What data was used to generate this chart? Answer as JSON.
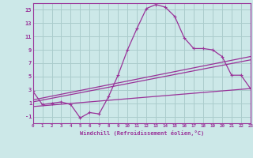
{
  "xlabel": "Windchill (Refroidissement éolien,°C)",
  "background_color": "#cce8e8",
  "grid_color": "#aacccc",
  "line_color": "#993399",
  "xlim": [
    0,
    23
  ],
  "ylim": [
    -2,
    16
  ],
  "xticks": [
    0,
    1,
    2,
    3,
    4,
    5,
    6,
    7,
    8,
    9,
    10,
    11,
    12,
    13,
    14,
    15,
    16,
    17,
    18,
    19,
    20,
    21,
    22,
    23
  ],
  "yticks": [
    -1,
    1,
    3,
    5,
    7,
    9,
    11,
    13,
    15
  ],
  "curve1_x": [
    0,
    1,
    2,
    3,
    4,
    5,
    6,
    7,
    8,
    9,
    10,
    11,
    12,
    13,
    14,
    15,
    16,
    17,
    18,
    19,
    20,
    21,
    22,
    23
  ],
  "curve1_y": [
    2.8,
    0.8,
    1.0,
    1.2,
    0.8,
    -1.2,
    -0.4,
    -0.6,
    2.0,
    5.2,
    9.0,
    12.2,
    15.2,
    15.8,
    15.4,
    14.0,
    10.8,
    9.2,
    9.2,
    9.0,
    8.0,
    5.2,
    5.2,
    3.2
  ],
  "curve2_x": [
    0,
    23
  ],
  "curve2_y": [
    1.5,
    8.0
  ],
  "curve3_x": [
    0,
    23
  ],
  "curve3_y": [
    1.2,
    7.5
  ],
  "curve4_x": [
    0,
    23
  ],
  "curve4_y": [
    0.5,
    3.2
  ]
}
